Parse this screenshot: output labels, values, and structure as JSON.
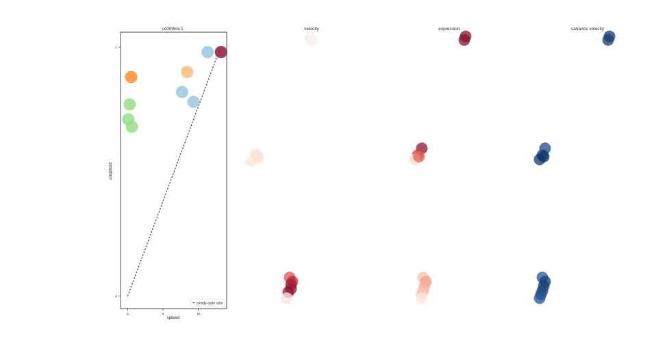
{
  "chart_data": [
    {
      "type": "scatter",
      "title": "uc009ntv.1",
      "xlabel": "spliced",
      "ylabel": "unspliced",
      "xticks": [
        "0",
        "5",
        "10"
      ],
      "yticks": [
        "0",
        "1"
      ],
      "xlim": [
        -1,
        14
      ],
      "ylim": [
        -0.05,
        1.06
      ],
      "legend": {
        "entries": [
          "steady-state ratio"
        ],
        "placement": "lower-right"
      },
      "steady_state_line": {
        "x": [
          0,
          13
        ],
        "y": [
          0,
          0.99
        ]
      },
      "points": [
        {
          "x": 0.5,
          "y": 0.88,
          "color": "#ff7f0e",
          "opacity": 0.75
        },
        {
          "x": 8.4,
          "y": 0.9,
          "color": "#ffbb78",
          "opacity": 0.85
        },
        {
          "x": 0.3,
          "y": 0.77,
          "color": "#98df8a",
          "opacity": 0.85
        },
        {
          "x": 0.1,
          "y": 0.71,
          "color": "#98df8a",
          "opacity": 0.85
        },
        {
          "x": 0.6,
          "y": 0.68,
          "color": "#98df8a",
          "opacity": 0.85
        },
        {
          "x": 7.7,
          "y": 0.82,
          "color": "#9ecae1",
          "opacity": 0.9
        },
        {
          "x": 9.3,
          "y": 0.78,
          "color": "#9ecae1",
          "opacity": 0.9
        },
        {
          "x": 11.3,
          "y": 0.98,
          "color": "#9ecae1",
          "opacity": 0.9
        },
        {
          "x": 13.2,
          "y": 0.98,
          "color": "#8b1a3a",
          "opacity": 0.85
        }
      ]
    },
    {
      "type": "scatter",
      "title": "velocity",
      "colormap": "reds",
      "points": [
        {
          "x": 0.49,
          "y": 0.95,
          "level": 0.02
        },
        {
          "x": 0.5,
          "y": 0.94,
          "level": 0.03
        },
        {
          "x": 0.09,
          "y": 0.53,
          "level": 0.05
        },
        {
          "x": 0.11,
          "y": 0.515,
          "level": 0.12
        },
        {
          "x": 0.06,
          "y": 0.505,
          "level": 0.1
        },
        {
          "x": 0.1,
          "y": 0.525,
          "level": 0.15
        },
        {
          "x": 0.34,
          "y": 0.083,
          "level": 0.62
        },
        {
          "x": 0.36,
          "y": 0.068,
          "level": 0.78
        },
        {
          "x": 0.35,
          "y": 0.058,
          "level": 0.85
        },
        {
          "x": 0.35,
          "y": 0.042,
          "level": 0.9
        },
        {
          "x": 0.33,
          "y": 0.03,
          "level": 0.95
        },
        {
          "x": 0.32,
          "y": 0.008,
          "level": 0.1
        }
      ]
    },
    {
      "type": "scatter",
      "title": "expression",
      "colormap": "reds",
      "points": [
        {
          "x": 0.62,
          "y": 0.955,
          "level": 0.97
        },
        {
          "x": 0.61,
          "y": 0.942,
          "level": 0.99
        },
        {
          "x": 0.3,
          "y": 0.55,
          "level": 0.95
        },
        {
          "x": 0.27,
          "y": 0.525,
          "level": 0.72
        },
        {
          "x": 0.25,
          "y": 0.51,
          "level": 0.18
        },
        {
          "x": 0.28,
          "y": 0.52,
          "level": 0.55
        },
        {
          "x": 0.31,
          "y": 0.083,
          "level": 0.3
        },
        {
          "x": 0.33,
          "y": 0.068,
          "level": 0.4
        },
        {
          "x": 0.32,
          "y": 0.052,
          "level": 0.35
        },
        {
          "x": 0.31,
          "y": 0.035,
          "level": 0.32
        },
        {
          "x": 0.3,
          "y": 0.022,
          "level": 0.28
        },
        {
          "x": 0.3,
          "y": 0.008,
          "level": 0.08
        }
      ]
    },
    {
      "type": "scatter",
      "title": "variance velocity",
      "colormap": "blues",
      "points": [
        {
          "x": 0.66,
          "y": 0.955,
          "level": 0.95
        },
        {
          "x": 0.65,
          "y": 0.942,
          "level": 0.92
        },
        {
          "x": 0.19,
          "y": 0.55,
          "level": 0.85
        },
        {
          "x": 0.17,
          "y": 0.525,
          "level": 0.9
        },
        {
          "x": 0.15,
          "y": 0.51,
          "level": 0.95
        },
        {
          "x": 0.18,
          "y": 0.52,
          "level": 0.97
        },
        {
          "x": 0.17,
          "y": 0.083,
          "level": 0.8
        },
        {
          "x": 0.19,
          "y": 0.068,
          "level": 0.9
        },
        {
          "x": 0.18,
          "y": 0.052,
          "level": 0.92
        },
        {
          "x": 0.17,
          "y": 0.035,
          "level": 0.88
        },
        {
          "x": 0.16,
          "y": 0.022,
          "level": 0.85
        },
        {
          "x": 0.15,
          "y": 0.008,
          "level": 0.8
        }
      ]
    }
  ]
}
